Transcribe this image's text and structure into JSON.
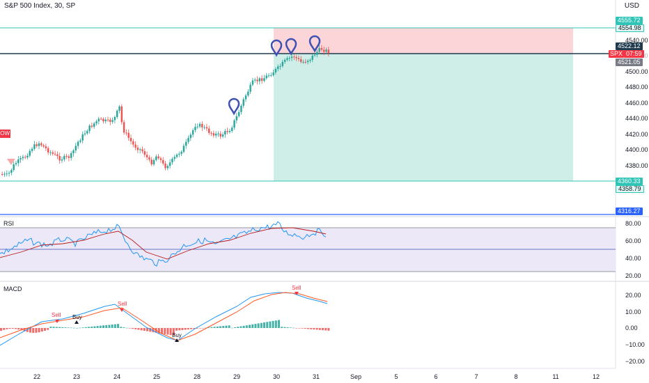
{
  "header": {
    "title": "S&P 500 Index, 30, SP",
    "currency": "USD"
  },
  "left_badge": "OW",
  "price_axis": {
    "ticks": [
      "4540.00",
      "4520.00",
      "4500.00",
      "4480.00",
      "4460.00",
      "4440.00",
      "4420.00",
      "4400.00",
      "4380.00"
    ]
  },
  "price_tags": {
    "tp_upper": "4555.72",
    "entry_upper": "4554.98",
    "current": "4522.12",
    "symbol": "SPX",
    "countdown": "07:59",
    "entry": "4521.05",
    "sl_upper": "4360.33",
    "sl_lower": "4358.79",
    "blue_line": "4316.27",
    "ghost_price": "4520.00"
  },
  "rsi": {
    "title": "RSI",
    "ticks": [
      "80.00",
      "60.00",
      "40.00",
      "20.00"
    ]
  },
  "macd": {
    "title": "MACD",
    "ticks": [
      "20.00",
      "10.00",
      "0.00",
      "−10.00",
      "−20.00"
    ],
    "signals": [
      "Sell",
      "Buy",
      "Sell",
      "Buy",
      "Sell"
    ]
  },
  "time_axis": [
    "22",
    "23",
    "24",
    "25",
    "28",
    "29",
    "30",
    "31",
    "Sep",
    "5",
    "6",
    "7",
    "8",
    "11",
    "12"
  ],
  "colors": {
    "up": "#26a69a",
    "down": "#ef5350",
    "profit_zone": "#cfeee8",
    "loss_zone": "#fcd5d8",
    "teal_line": "#2ec4b6",
    "blue_line": "#2962ff",
    "rsi_line": "#2196f3",
    "rsi_ma": "#b71c1c",
    "rsi_band": "#ece8f7",
    "pin": "#3f51b5"
  },
  "icons": [
    "pin-marker-icon",
    "sell-arrow-icon",
    "buy-arrow-icon"
  ]
}
